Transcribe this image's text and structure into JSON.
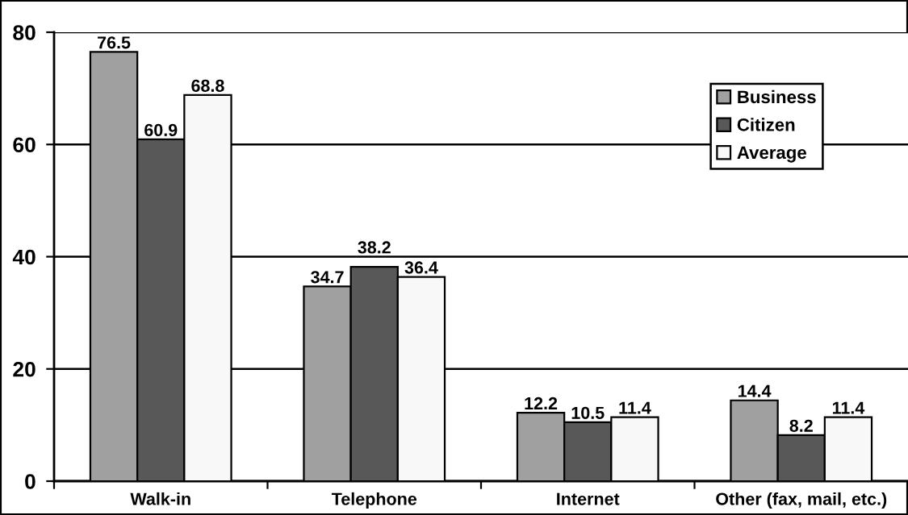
{
  "chart_data": {
    "type": "bar",
    "categories": [
      "Walk-in",
      "Telephone",
      "Internet",
      "Other (fax, mail, etc.)"
    ],
    "series": [
      {
        "name": "Business",
        "color": "#a0a0a0",
        "values": [
          76.5,
          34.7,
          12.2,
          14.4
        ]
      },
      {
        "name": "Citizen",
        "color": "#585858",
        "values": [
          60.9,
          38.2,
          10.5,
          8.2
        ]
      },
      {
        "name": "Average",
        "color": "#f8f8f8",
        "values": [
          68.8,
          36.4,
          11.4,
          11.4
        ]
      }
    ],
    "ylim": [
      0,
      80
    ],
    "yticks": [
      0,
      20,
      40,
      60,
      80
    ],
    "grid": "y",
    "legend": "top right",
    "data_labels": true
  }
}
